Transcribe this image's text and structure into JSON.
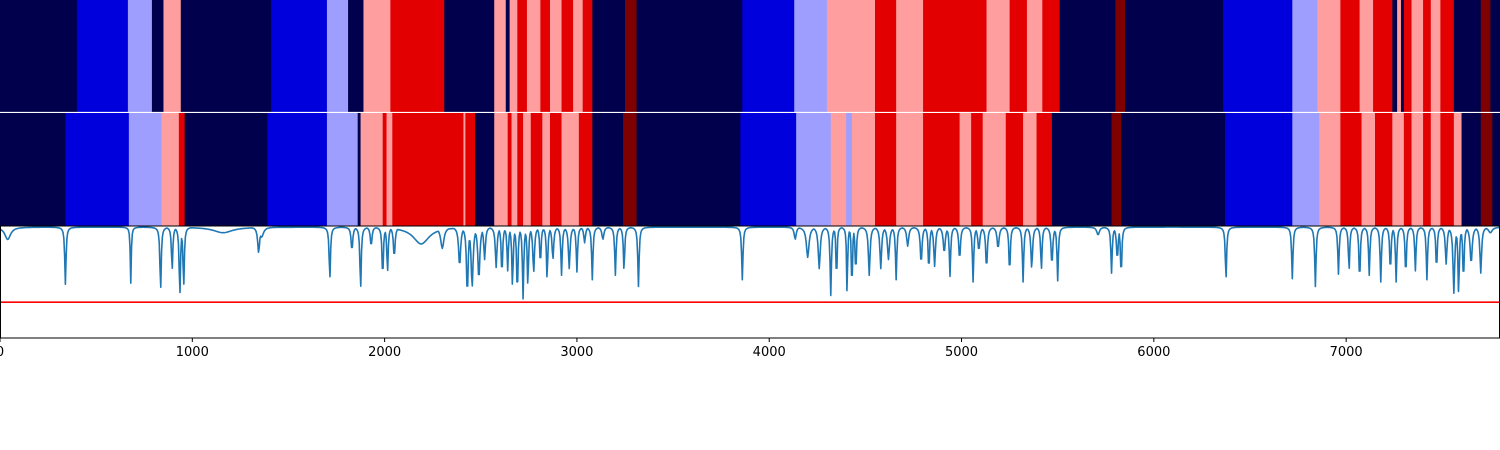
{
  "chart_data": {
    "type": "heatmap",
    "x_range": [
      0,
      7800
    ],
    "x_ticks": [
      "0",
      "1000",
      "2000",
      "3000",
      "4000",
      "5000",
      "6000",
      "7000"
    ],
    "palette": {
      "0": "#00004c",
      "1": "#0000dd",
      "2": "#9e9eff",
      "3": "#ff9e9e",
      "4": "#e20000",
      "5": "#7f0000"
    },
    "colors": {
      "line": "#1f77b4",
      "threshold": "#ff0000",
      "separator": "#ffffff"
    },
    "track_top": [
      [
        0,
        400,
        0
      ],
      [
        400,
        665,
        1
      ],
      [
        665,
        790,
        2
      ],
      [
        790,
        850,
        0
      ],
      [
        850,
        940,
        3
      ],
      [
        940,
        1410,
        0
      ],
      [
        1410,
        1700,
        1
      ],
      [
        1700,
        1810,
        2
      ],
      [
        1810,
        1890,
        0
      ],
      [
        1890,
        2030,
        3
      ],
      [
        2030,
        2310,
        4
      ],
      [
        2310,
        2570,
        0
      ],
      [
        2570,
        2630,
        3
      ],
      [
        2630,
        2650,
        0
      ],
      [
        2650,
        2690,
        3
      ],
      [
        2690,
        2740,
        4
      ],
      [
        2740,
        2810,
        3
      ],
      [
        2810,
        2860,
        4
      ],
      [
        2860,
        2920,
        3
      ],
      [
        2920,
        2980,
        4
      ],
      [
        2980,
        3030,
        3
      ],
      [
        3030,
        3080,
        4
      ],
      [
        3080,
        3250,
        0
      ],
      [
        3250,
        3310,
        5
      ],
      [
        3310,
        3860,
        0
      ],
      [
        3860,
        4130,
        1
      ],
      [
        4130,
        4300,
        2
      ],
      [
        4300,
        4550,
        3
      ],
      [
        4550,
        4660,
        4
      ],
      [
        4660,
        4800,
        3
      ],
      [
        4800,
        5130,
        4
      ],
      [
        5130,
        5250,
        3
      ],
      [
        5250,
        5340,
        4
      ],
      [
        5340,
        5420,
        3
      ],
      [
        5420,
        5510,
        4
      ],
      [
        5510,
        5800,
        0
      ],
      [
        5800,
        5850,
        5
      ],
      [
        5850,
        6360,
        0
      ],
      [
        6360,
        6720,
        1
      ],
      [
        6720,
        6850,
        2
      ],
      [
        6850,
        6970,
        3
      ],
      [
        6970,
        7070,
        4
      ],
      [
        7070,
        7140,
        3
      ],
      [
        7140,
        7240,
        4
      ],
      [
        7240,
        7265,
        0
      ],
      [
        7265,
        7285,
        3
      ],
      [
        7285,
        7300,
        0
      ],
      [
        7300,
        7340,
        4
      ],
      [
        7340,
        7400,
        3
      ],
      [
        7400,
        7440,
        4
      ],
      [
        7440,
        7490,
        3
      ],
      [
        7490,
        7560,
        4
      ],
      [
        7560,
        7700,
        0
      ],
      [
        7700,
        7750,
        5
      ],
      [
        7750,
        7800,
        0
      ]
    ],
    "track_bottom": [
      [
        0,
        340,
        0
      ],
      [
        340,
        670,
        1
      ],
      [
        670,
        840,
        2
      ],
      [
        840,
        930,
        3
      ],
      [
        930,
        960,
        4
      ],
      [
        960,
        1390,
        0
      ],
      [
        1390,
        1700,
        1
      ],
      [
        1700,
        1860,
        2
      ],
      [
        1860,
        1875,
        0
      ],
      [
        1875,
        1990,
        3
      ],
      [
        1990,
        2010,
        4
      ],
      [
        2010,
        2040,
        3
      ],
      [
        2040,
        2410,
        4
      ],
      [
        2410,
        2420,
        3
      ],
      [
        2420,
        2470,
        4
      ],
      [
        2470,
        2570,
        0
      ],
      [
        2570,
        2640,
        3
      ],
      [
        2640,
        2660,
        4
      ],
      [
        2660,
        2690,
        3
      ],
      [
        2690,
        2720,
        4
      ],
      [
        2720,
        2760,
        3
      ],
      [
        2760,
        2820,
        4
      ],
      [
        2820,
        2860,
        3
      ],
      [
        2860,
        2920,
        4
      ],
      [
        2920,
        3010,
        3
      ],
      [
        3010,
        3080,
        4
      ],
      [
        3080,
        3240,
        0
      ],
      [
        3240,
        3310,
        5
      ],
      [
        3310,
        3850,
        0
      ],
      [
        3850,
        4140,
        1
      ],
      [
        4140,
        4320,
        2
      ],
      [
        4320,
        4400,
        3
      ],
      [
        4400,
        4430,
        2
      ],
      [
        4430,
        4550,
        3
      ],
      [
        4550,
        4660,
        4
      ],
      [
        4660,
        4800,
        3
      ],
      [
        4800,
        4990,
        4
      ],
      [
        4990,
        5050,
        3
      ],
      [
        5050,
        5110,
        4
      ],
      [
        5110,
        5230,
        3
      ],
      [
        5230,
        5320,
        4
      ],
      [
        5320,
        5390,
        3
      ],
      [
        5390,
        5470,
        4
      ],
      [
        5470,
        5780,
        0
      ],
      [
        5780,
        5830,
        5
      ],
      [
        5830,
        6370,
        0
      ],
      [
        6370,
        6720,
        1
      ],
      [
        6720,
        6860,
        2
      ],
      [
        6860,
        6970,
        3
      ],
      [
        6970,
        7080,
        4
      ],
      [
        7080,
        7150,
        3
      ],
      [
        7150,
        7240,
        4
      ],
      [
        7240,
        7300,
        3
      ],
      [
        7300,
        7340,
        4
      ],
      [
        7340,
        7400,
        3
      ],
      [
        7400,
        7440,
        4
      ],
      [
        7440,
        7490,
        3
      ],
      [
        7490,
        7560,
        4
      ],
      [
        7560,
        7600,
        3
      ],
      [
        7600,
        7700,
        0
      ],
      [
        7700,
        7760,
        5
      ],
      [
        7760,
        7800,
        0
      ]
    ],
    "signal": {
      "ylim": [
        0,
        1
      ],
      "threshold": 0.32,
      "baseline": 0.99,
      "dips": [
        [
          40,
          18,
          0.88
        ],
        [
          340,
          4,
          0.48
        ],
        [
          680,
          3,
          0.49
        ],
        [
          835,
          4,
          0.42
        ],
        [
          895,
          4,
          0.6
        ],
        [
          935,
          4,
          0.37
        ],
        [
          955,
          4,
          0.45
        ],
        [
          1160,
          60,
          0.94
        ],
        [
          1345,
          6,
          0.76
        ],
        [
          1360,
          12,
          0.9
        ],
        [
          1715,
          4,
          0.52
        ],
        [
          1830,
          5,
          0.78
        ],
        [
          1875,
          4,
          0.43
        ],
        [
          1930,
          5,
          0.82
        ],
        [
          1990,
          4,
          0.53
        ],
        [
          2015,
          4,
          0.58
        ],
        [
          2050,
          5,
          0.72
        ],
        [
          2190,
          50,
          0.84
        ],
        [
          2300,
          10,
          0.8
        ],
        [
          2390,
          6,
          0.64
        ],
        [
          2430,
          5,
          0.38
        ],
        [
          2455,
          6,
          0.45
        ],
        [
          2490,
          6,
          0.52
        ],
        [
          2520,
          5,
          0.7
        ],
        [
          2580,
          5,
          0.63
        ],
        [
          2610,
          4,
          0.55
        ],
        [
          2640,
          4,
          0.6
        ],
        [
          2665,
          4,
          0.45
        ],
        [
          2690,
          4,
          0.38
        ],
        [
          2720,
          4,
          0.35
        ],
        [
          2745,
          4,
          0.46
        ],
        [
          2775,
          5,
          0.58
        ],
        [
          2810,
          4,
          0.65
        ],
        [
          2845,
          4,
          0.52
        ],
        [
          2875,
          5,
          0.7
        ],
        [
          2920,
          4,
          0.56
        ],
        [
          2960,
          5,
          0.62
        ],
        [
          3000,
          4,
          0.59
        ],
        [
          3040,
          5,
          0.85
        ],
        [
          3080,
          4,
          0.52
        ],
        [
          3135,
          6,
          0.88
        ],
        [
          3200,
          4,
          0.56
        ],
        [
          3245,
          4,
          0.6
        ],
        [
          3320,
          4,
          0.46
        ],
        [
          3860,
          4,
          0.52
        ],
        [
          4135,
          6,
          0.88
        ],
        [
          4200,
          8,
          0.72
        ],
        [
          4260,
          6,
          0.62
        ],
        [
          4320,
          4,
          0.38
        ],
        [
          4350,
          3,
          0.46
        ],
        [
          4405,
          3,
          0.36
        ],
        [
          4430,
          3,
          0.37
        ],
        [
          4450,
          4,
          0.58
        ],
        [
          4520,
          5,
          0.56
        ],
        [
          4580,
          5,
          0.62
        ],
        [
          4620,
          6,
          0.7
        ],
        [
          4660,
          4,
          0.52
        ],
        [
          4720,
          6,
          0.82
        ],
        [
          4790,
          5,
          0.66
        ],
        [
          4830,
          4,
          0.59
        ],
        [
          4860,
          5,
          0.64
        ],
        [
          4910,
          6,
          0.76
        ],
        [
          4940,
          4,
          0.55
        ],
        [
          4990,
          5,
          0.7
        ],
        [
          5060,
          4,
          0.5
        ],
        [
          5090,
          6,
          0.78
        ],
        [
          5130,
          5,
          0.62
        ],
        [
          5190,
          6,
          0.8
        ],
        [
          5250,
          4,
          0.57
        ],
        [
          5320,
          4,
          0.5
        ],
        [
          5365,
          5,
          0.62
        ],
        [
          5415,
          4,
          0.6
        ],
        [
          5470,
          5,
          0.65
        ],
        [
          5500,
          4,
          0.51
        ],
        [
          5710,
          8,
          0.92
        ],
        [
          5780,
          4,
          0.58
        ],
        [
          5810,
          5,
          0.7
        ],
        [
          5830,
          4,
          0.55
        ],
        [
          6375,
          4,
          0.52
        ],
        [
          6720,
          4,
          0.53
        ],
        [
          6840,
          4,
          0.46
        ],
        [
          6960,
          4,
          0.57
        ],
        [
          7015,
          4,
          0.6
        ],
        [
          7070,
          4,
          0.5
        ],
        [
          7120,
          4,
          0.56
        ],
        [
          7180,
          4,
          0.5
        ],
        [
          7230,
          4,
          0.58
        ],
        [
          7260,
          4,
          0.5
        ],
        [
          7310,
          4,
          0.55
        ],
        [
          7360,
          4,
          0.6
        ],
        [
          7420,
          4,
          0.52
        ],
        [
          7470,
          4,
          0.6
        ],
        [
          7520,
          5,
          0.66
        ],
        [
          7560,
          5,
          0.4
        ],
        [
          7585,
          4,
          0.38
        ],
        [
          7610,
          4,
          0.5
        ],
        [
          7650,
          6,
          0.66
        ],
        [
          7700,
          5,
          0.58
        ],
        [
          7750,
          12,
          0.94
        ]
      ]
    }
  }
}
